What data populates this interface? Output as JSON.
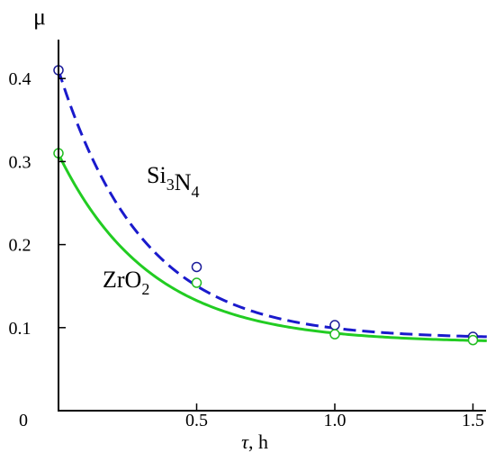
{
  "chart_data": {
    "type": "line",
    "ylabel": "μ",
    "xlabel_symbol": "τ",
    "xlabel_unit": ", h",
    "xlim": [
      0,
      1.55
    ],
    "ylim": [
      0,
      0.45
    ],
    "origin_label": "0",
    "x_ticks": [
      {
        "value": 0.5,
        "label": "0.5"
      },
      {
        "value": 1.0,
        "label": "1.0"
      },
      {
        "value": 1.5,
        "label": "1.5"
      }
    ],
    "y_ticks": [
      {
        "value": 0.1,
        "label": "0.1"
      },
      {
        "value": 0.2,
        "label": "0.2"
      },
      {
        "value": 0.3,
        "label": "0.3"
      },
      {
        "value": 0.4,
        "label": "0.4"
      }
    ],
    "grid": false,
    "series": [
      {
        "name_parts": [
          [
            "Si",
            "3"
          ],
          [
            "N",
            "4"
          ]
        ],
        "color": "#1a1acc",
        "marker_edge": "#1a1a99",
        "line_style": "dashed",
        "curve": {
          "a": 0.323,
          "k": 3.26,
          "c": 0.087
        },
        "points": [
          {
            "x": 0.0,
            "y": 0.41
          },
          {
            "x": 0.5,
            "y": 0.173
          },
          {
            "x": 1.0,
            "y": 0.103
          },
          {
            "x": 1.5,
            "y": 0.089
          }
        ]
      },
      {
        "name_parts": [
          [
            "ZrO",
            "2"
          ]
        ],
        "color": "#22cc22",
        "marker_edge": "#22bb22",
        "line_style": "solid",
        "curve": {
          "a": 0.227,
          "k": 3.0,
          "c": 0.082
        },
        "points": [
          {
            "x": 0.0,
            "y": 0.31
          },
          {
            "x": 0.5,
            "y": 0.154
          },
          {
            "x": 1.0,
            "y": 0.092
          },
          {
            "x": 1.5,
            "y": 0.085
          }
        ]
      }
    ]
  }
}
